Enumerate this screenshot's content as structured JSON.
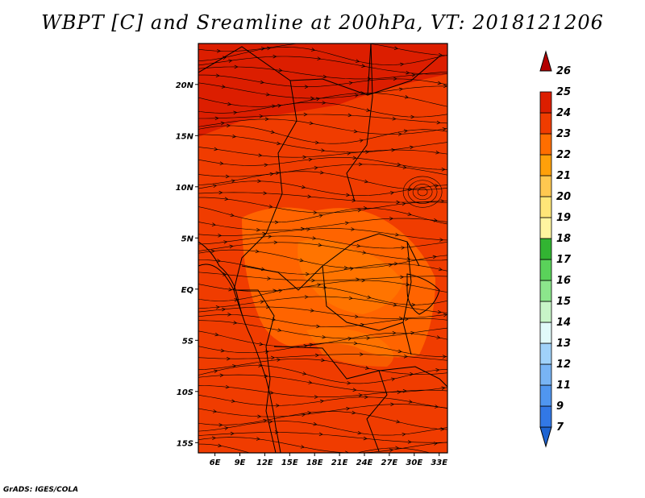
{
  "title": "WBPT [C] and Sreamline at 200hPa, VT: 2018121206",
  "footer": "GrADS: IGES/COLA",
  "map": {
    "lon_range": [
      4,
      34
    ],
    "lat_range": [
      -16,
      24
    ],
    "lon_ticks": [
      {
        "v": 6,
        "label": "6E"
      },
      {
        "v": 9,
        "label": "9E"
      },
      {
        "v": 12,
        "label": "12E"
      },
      {
        "v": 15,
        "label": "15E"
      },
      {
        "v": 18,
        "label": "18E"
      },
      {
        "v": 21,
        "label": "21E"
      },
      {
        "v": 24,
        "label": "24E"
      },
      {
        "v": 27,
        "label": "27E"
      },
      {
        "v": 30,
        "label": "30E"
      },
      {
        "v": 33,
        "label": "33E"
      }
    ],
    "lat_ticks": [
      {
        "v": 20,
        "label": "20N"
      },
      {
        "v": 15,
        "label": "15N"
      },
      {
        "v": 10,
        "label": "10N"
      },
      {
        "v": 5,
        "label": "5N"
      },
      {
        "v": 0,
        "label": "EQ"
      },
      {
        "v": -5,
        "label": "5S"
      },
      {
        "v": -10,
        "label": "10S"
      },
      {
        "v": -15,
        "label": "15S"
      }
    ]
  },
  "colorbar": {
    "labels": [
      "7",
      "9",
      "11",
      "12",
      "13",
      "14",
      "15",
      "16",
      "17",
      "18",
      "19",
      "20",
      "21",
      "22",
      "23",
      "24",
      "25",
      "26"
    ],
    "colors": [
      "#1e64d2",
      "#3278e6",
      "#5096f0",
      "#78b4f5",
      "#a0d2fa",
      "#e1fafa",
      "#c8f5c8",
      "#8ce68c",
      "#5ad25a",
      "#32b432",
      "#fff5a0",
      "#ffe678",
      "#ffc850",
      "#ffa00a",
      "#ff6e00",
      "#f03c00",
      "#dc1e00",
      "#b40000"
    ]
  },
  "field_colors": {
    "t22": "#ff8200",
    "t23": "#ff6400",
    "t24": "#f03c00",
    "t25": "#dc1e00"
  }
}
